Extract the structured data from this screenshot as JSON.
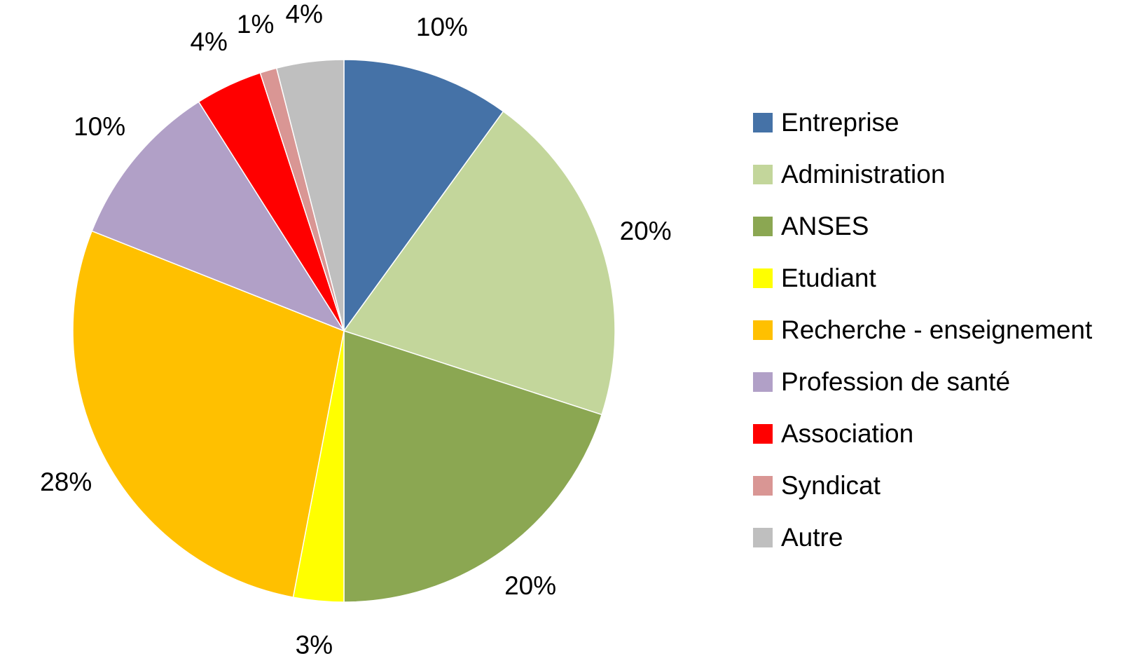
{
  "chart_data": {
    "type": "pie",
    "categories": [
      "Entreprise",
      "Administration",
      "ANSES",
      "Etudiant",
      "Recherche - enseignement",
      "Profession de santé",
      "Association",
      "Syndicat",
      "Autre"
    ],
    "values": [
      10,
      20,
      20,
      3,
      28,
      10,
      4,
      1,
      4
    ],
    "value_labels": [
      "10%",
      "20%",
      "20%",
      "3%",
      "28%",
      "10%",
      "4%",
      "1%",
      "4%"
    ],
    "colors": [
      "#4572a7",
      "#c3d69b",
      "#8ba752",
      "#ffff00",
      "#ffc000",
      "#b1a0c7",
      "#ff0000",
      "#d99694",
      "#bfbfbf"
    ],
    "legend": "right"
  }
}
